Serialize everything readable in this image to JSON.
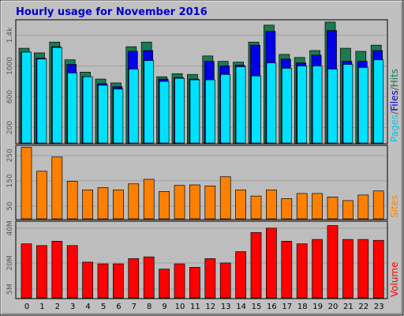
{
  "window": {
    "title": "Hourly usage for November 2016"
  },
  "colors": {
    "background": "#c0c0c0",
    "plot": "#bdbdbd",
    "hits": "#1a7a50",
    "files": "#0000e6",
    "pages": "#00e0ff",
    "sites": "#ff8000",
    "volume": "#ff0000",
    "grid": "#a0a0a0",
    "title": "#0000cc"
  },
  "legend": {
    "pages": "Pages",
    "slash1": "/",
    "files": "Files",
    "slash2": "/",
    "hits": "Hits",
    "sites": "Sites",
    "volume": "Volume"
  },
  "chart_data": [
    {
      "type": "bar",
      "title": "Hourly usage for November 2016",
      "categories": [
        "0",
        "1",
        "2",
        "3",
        "4",
        "5",
        "6",
        "7",
        "8",
        "9",
        "10",
        "11",
        "12",
        "13",
        "14",
        "15",
        "16",
        "17",
        "18",
        "19",
        "20",
        "21",
        "22",
        "23"
      ],
      "series": [
        {
          "name": "Hits",
          "values": [
            1230,
            1170,
            1310,
            1080,
            920,
            830,
            780,
            1250,
            1310,
            860,
            900,
            890,
            1130,
            1060,
            1050,
            1310,
            1530,
            1150,
            1110,
            1200,
            1570,
            1230,
            1190,
            1270
          ]
        },
        {
          "name": "Files",
          "values": [
            1180,
            1100,
            1250,
            1020,
            860,
            770,
            730,
            1190,
            1200,
            830,
            850,
            830,
            1060,
            1000,
            1010,
            1270,
            1450,
            1090,
            1040,
            1140,
            1460,
            1060,
            1060,
            1200
          ]
        },
        {
          "name": "Pages",
          "values": [
            1180,
            1090,
            1240,
            910,
            860,
            750,
            700,
            960,
            1070,
            800,
            840,
            820,
            820,
            890,
            990,
            870,
            1040,
            970,
            1000,
            1000,
            960,
            1020,
            980,
            1080
          ]
        }
      ],
      "ylabel": "Pages/Files/Hits",
      "yticks": [
        "200",
        "600",
        "1000",
        "1.4k"
      ],
      "ylim": [
        0,
        1600
      ]
    },
    {
      "type": "bar",
      "categories": [
        "0",
        "1",
        "2",
        "3",
        "4",
        "5",
        "6",
        "7",
        "8",
        "9",
        "10",
        "11",
        "12",
        "13",
        "14",
        "15",
        "16",
        "17",
        "18",
        "19",
        "20",
        "21",
        "22",
        "23"
      ],
      "series": [
        {
          "name": "Sites",
          "values": [
            282,
            188,
            244,
            148,
            114,
            123,
            114,
            138,
            156,
            108,
            132,
            134,
            130,
            166,
            114,
            90,
            114,
            80,
            100,
            100,
            86,
            72,
            94,
            110
          ]
        }
      ],
      "ylabel": "Sites",
      "yticks": [
        "50",
        "150",
        "250"
      ],
      "ylim": [
        0,
        290
      ]
    },
    {
      "type": "bar",
      "categories": [
        "0",
        "1",
        "2",
        "3",
        "4",
        "5",
        "6",
        "7",
        "8",
        "9",
        "10",
        "11",
        "12",
        "13",
        "14",
        "15",
        "16",
        "17",
        "18",
        "19",
        "20",
        "21",
        "22",
        "23"
      ],
      "series": [
        {
          "name": "Volume",
          "values": [
            31,
            30,
            32.5,
            30,
            20.5,
            19.5,
            19.5,
            22.5,
            23.5,
            16.5,
            19.5,
            17.5,
            22.5,
            20,
            26.5,
            37.5,
            40,
            32.5,
            31,
            33.5,
            41.5,
            33.5,
            33.5,
            33
          ]
        }
      ],
      "ylabel": "Volume",
      "yticks": [
        "5M",
        "20M",
        "40M"
      ],
      "ylim": [
        0,
        44
      ]
    }
  ]
}
